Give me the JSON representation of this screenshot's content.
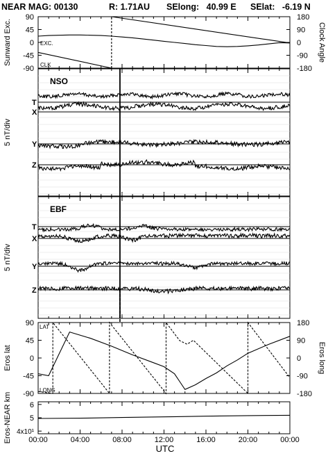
{
  "title": {
    "mission": "NEAR MAG: 00130",
    "range": "R: 1.71AU",
    "selong": "SElong:   40.99 E",
    "selat": "SElat:   -6.19 N"
  },
  "x_axis": {
    "label": "UTC",
    "tick_labels": [
      "00:00",
      "04:00",
      "08:00",
      "12:00",
      "16:00",
      "20:00",
      "00:00"
    ],
    "tick_hours": [
      0,
      4,
      8,
      12,
      16,
      20,
      24
    ]
  },
  "chart_data": [
    {
      "id": "panel_sunward",
      "type": "line",
      "ylabel_left": "Sunward Exc.",
      "ylabel_right": "Clock Angle",
      "yticks_left": [
        "90",
        "45",
        "0",
        "-45",
        "-90"
      ],
      "yticks_right": [
        "180",
        "90",
        "0",
        "-90",
        "-180"
      ],
      "ylim": [
        -90,
        90
      ],
      "series": [
        {
          "name": "EXC.",
          "style": "solid",
          "x": [
            0,
            1,
            2,
            3,
            4,
            5,
            6,
            7,
            8,
            9,
            10,
            11,
            12,
            13,
            14,
            15,
            16,
            17,
            18,
            19,
            20,
            21,
            22,
            23,
            24
          ],
          "y": [
            22,
            24,
            25,
            26,
            26,
            25,
            24,
            22,
            19,
            16,
            12,
            8,
            4,
            0,
            -4,
            -8,
            -11,
            -14,
            -15,
            -14,
            -12,
            -9,
            -5,
            -1,
            -2
          ]
        },
        {
          "name": "CLK",
          "style": "solid",
          "x": [
            0,
            7,
            7,
            24
          ],
          "y": [
            -35,
            -90,
            90,
            -2
          ]
        }
      ],
      "right_ylim": [
        -180,
        180
      ]
    },
    {
      "id": "panel_nso",
      "type": "line",
      "label": "NSO",
      "ylabel": "5 nT/div",
      "components": [
        "T",
        "X",
        "Y",
        "Z"
      ],
      "spike_hour": 7.8
    },
    {
      "id": "panel_ebf",
      "type": "line",
      "label": "EBF",
      "ylabel": "5 nT/div",
      "components": [
        "T",
        "X",
        "Y",
        "Z"
      ],
      "spike_hour": 7.8
    },
    {
      "id": "panel_eros",
      "type": "line",
      "ylabel_left": "Eros lat",
      "ylabel_right": "Eros long",
      "yticks_left": [
        "90",
        "45",
        "0",
        "-45",
        "-90"
      ],
      "yticks_right": [
        "180",
        "90",
        "0",
        "-90",
        "-180"
      ],
      "ylim": [
        -90,
        90
      ],
      "right_ylim": [
        -180,
        180
      ],
      "series": [
        {
          "name": "LAT",
          "style": "solid",
          "x": [
            0,
            1,
            3,
            5,
            7,
            9,
            11,
            12,
            13,
            13.5,
            14,
            15,
            16,
            17,
            18,
            19,
            20,
            22,
            24
          ],
          "y": [
            -40,
            -45,
            66,
            50,
            30,
            8,
            -12,
            -22,
            -40,
            -60,
            -80,
            -68,
            -52,
            -38,
            -20,
            -5,
            12,
            35,
            55
          ]
        },
        {
          "name": "LONG",
          "style": "dashed",
          "x": [
            0,
            1.4,
            1.4,
            6.8,
            6.8,
            12.2,
            12.2,
            13.5,
            14.2,
            14.8,
            20,
            20,
            24
          ],
          "y": [
            -170,
            -180,
            180,
            -180,
            180,
            -180,
            180,
            88,
            70,
            90,
            -180,
            180,
            -100
          ]
        }
      ]
    },
    {
      "id": "panel_range",
      "type": "line",
      "ylabel": "Eros-NEAR km",
      "yticks": [
        "6",
        "5",
        "4x10¹"
      ],
      "ylim": [
        38,
        62
      ],
      "series": [
        {
          "name": "range",
          "x": [
            0,
            4,
            8,
            12,
            16,
            20,
            24
          ],
          "y": [
            49.5,
            49.7,
            50.2,
            50.7,
            51.2,
            51.6,
            51.9
          ]
        }
      ]
    }
  ]
}
